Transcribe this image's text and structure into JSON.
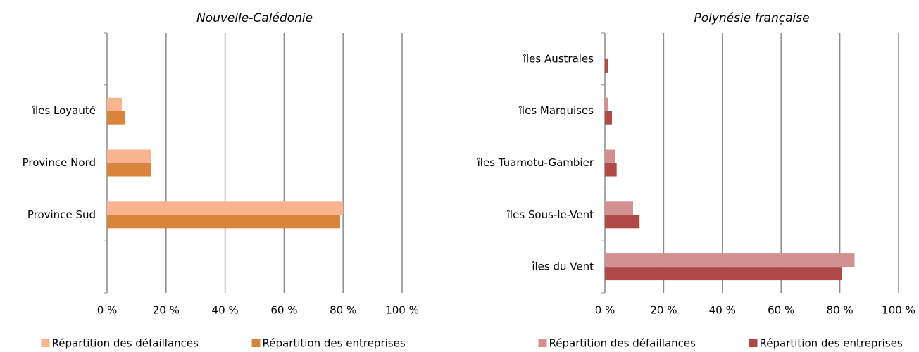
{
  "chart_data": [
    {
      "type": "bar",
      "orientation": "horizontal",
      "title": "Nouvelle-Calédonie",
      "categories": [
        null,
        "îles Loyauté",
        "Province Nord",
        "Province Sud",
        null
      ],
      "series": [
        {
          "name": "Répartition des défaillances",
          "color": "#f9b48f",
          "values": [
            null,
            5,
            15,
            80,
            null
          ]
        },
        {
          "name": "Répartition des entreprises",
          "color": "#d9843c",
          "values": [
            null,
            6,
            15,
            79,
            null
          ]
        }
      ],
      "xlim": [
        0,
        100
      ],
      "xticks": [
        {
          "value": 0,
          "label": "0 %"
        },
        {
          "value": 20,
          "label": "20 %"
        },
        {
          "value": 40,
          "label": "40 %"
        },
        {
          "value": 60,
          "label": "60 %"
        },
        {
          "value": 80,
          "label": "80 %"
        },
        {
          "value": 100,
          "label": "100 %"
        }
      ],
      "grid": true,
      "legend": "bottom"
    },
    {
      "type": "bar",
      "orientation": "horizontal",
      "title": "Polynésie française",
      "categories": [
        "îles Australes",
        "îles Marquises",
        "îles Tuamotu-Gambier",
        "îles Sous-le-Vent",
        "îles du Vent"
      ],
      "series": [
        {
          "name": "Répartition des défaillances",
          "color": "#d49090",
          "values": [
            0.3,
            1,
            3.6,
            9.6,
            85
          ]
        },
        {
          "name": "Répartition des entreprises",
          "color": "#b04a48",
          "values": [
            1,
            2.4,
            4,
            11.8,
            80.6
          ]
        }
      ],
      "xlim": [
        0,
        100
      ],
      "xticks": [
        {
          "value": 0,
          "label": "0 %"
        },
        {
          "value": 20,
          "label": "20 %"
        },
        {
          "value": 40,
          "label": "40 %"
        },
        {
          "value": 60,
          "label": "60 %"
        },
        {
          "value": 80,
          "label": "80 %"
        },
        {
          "value": 100,
          "label": "100 %"
        }
      ],
      "grid": true,
      "legend": "bottom"
    }
  ]
}
